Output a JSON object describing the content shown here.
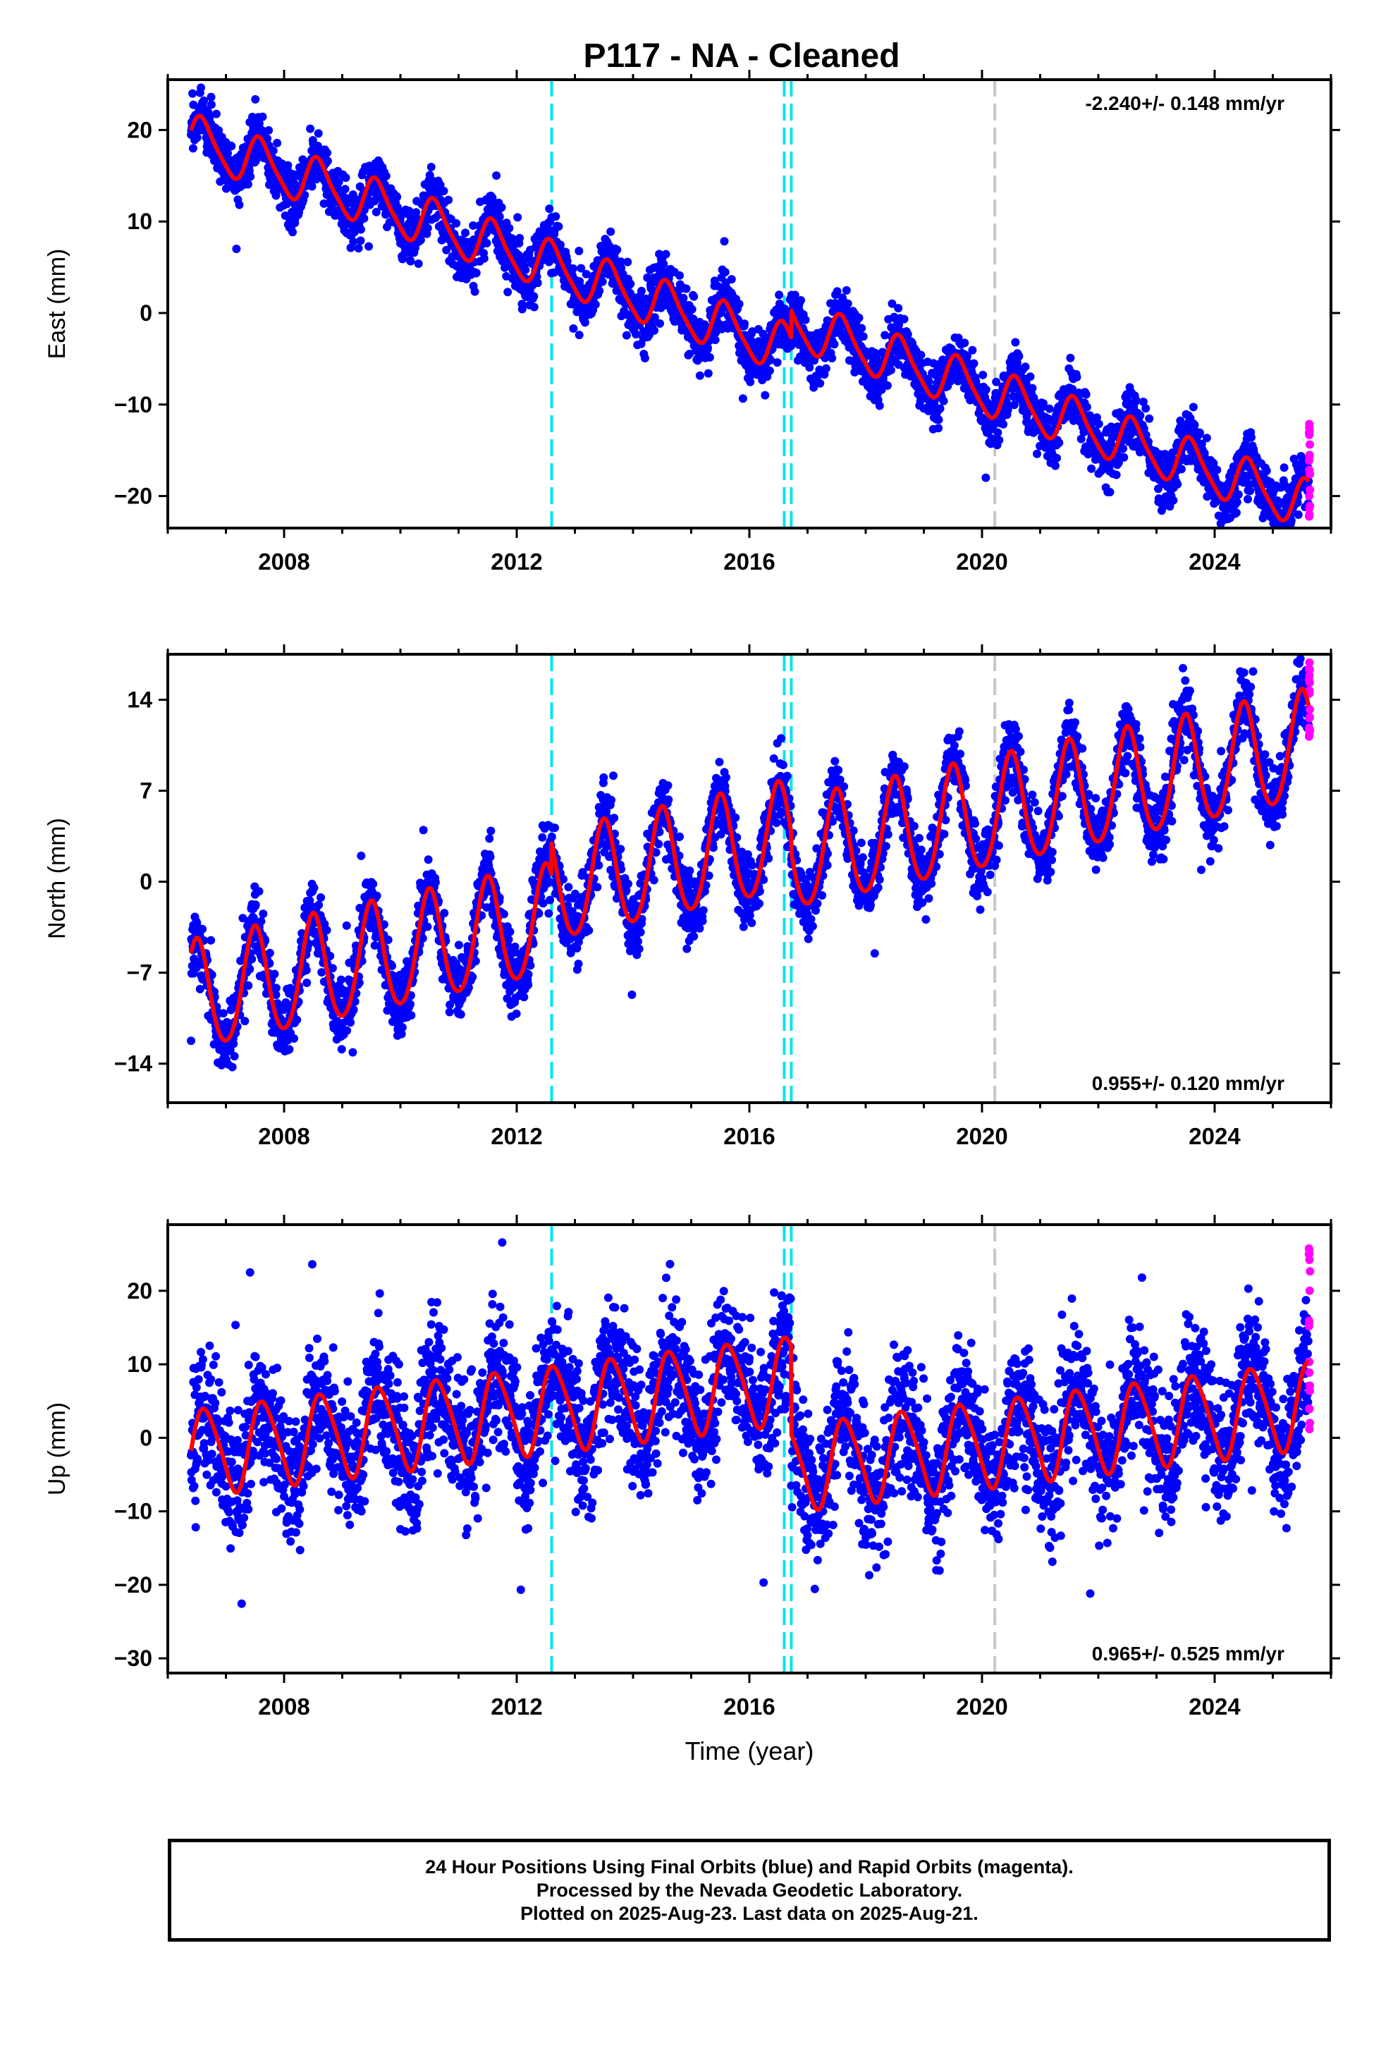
{
  "title": "P117  - NA - Cleaned",
  "colors": {
    "final_orbits": "#0000ff",
    "rapid_orbits": "#ff00ff",
    "model_fit": "#ff0000",
    "offset_equipment": "#00e5ee",
    "offset_other": "#c8c8c8",
    "axis": "#000000"
  },
  "footer": {
    "line1": "24 Hour Positions Using Final Orbits (blue) and Rapid Orbits (magenta).",
    "line2": "Processed by the Nevada Geodetic Laboratory.",
    "line3": "Plotted on 2025-Aug-23. Last data on 2025-Aug-21."
  },
  "chart_data": [
    {
      "type": "scatter",
      "component": "East",
      "ylabel": "East (mm)",
      "xlabel": "",
      "xlim": [
        2006.0,
        2026.0
      ],
      "ylim": [
        -23.5,
        25.5
      ],
      "x_ticks": [
        2008,
        2012,
        2016,
        2020,
        2024
      ],
      "y_ticks": [
        -20,
        -10,
        0,
        10,
        20
      ],
      "rate_label": "-2.240+/- 0.148 mm/yr",
      "rate_label_position": "top-right",
      "offsets": [
        2012.6,
        2016.6,
        2016.72
      ],
      "other_offsets": [
        2020.22
      ],
      "model": {
        "start_year": 2006.4,
        "end_year": 2025.62,
        "value_at_start": 19.0,
        "rate": -2.24,
        "annual_amplitude": 2.6,
        "annual_peak_phase": 0.6,
        "semiannual_amplitude": 0.5,
        "steps": [
          {
            "year": 2016.72,
            "size": 3.0
          }
        ]
      },
      "scatter_sd": 1.5,
      "rapid": {
        "start_year": 2025.62,
        "end_year": 2025.64,
        "y_min": -22.5,
        "y_max": -12.0
      }
    },
    {
      "type": "scatter",
      "component": "North",
      "ylabel": "North (mm)",
      "xlabel": "",
      "xlim": [
        2006.0,
        2026.0
      ],
      "ylim": [
        -17,
        17.5
      ],
      "x_ticks": [
        2008,
        2012,
        2016,
        2020,
        2024
      ],
      "y_ticks": [
        -14,
        -7,
        0,
        7,
        14
      ],
      "rate_label": "0.955+/- 0.120 mm/yr",
      "rate_label_position": "bottom-right",
      "offsets": [
        2012.6,
        2016.6,
        2016.72
      ],
      "other_offsets": [
        2020.22
      ],
      "model": {
        "start_year": 2006.4,
        "end_year": 2025.62,
        "value_at_start": -9.0,
        "rate": 0.955,
        "annual_amplitude": 4.2,
        "annual_peak_phase": 0.5,
        "semiannual_amplitude": 0.4,
        "steps": [
          {
            "year": 2012.6,
            "size": 2.5
          },
          {
            "year": 2016.72,
            "size": -1.5
          }
        ]
      },
      "scatter_sd": 1.3,
      "rapid": {
        "start_year": 2025.62,
        "end_year": 2025.64,
        "y_min": 10.5,
        "y_max": 17.5
      }
    },
    {
      "type": "scatter",
      "component": "Up",
      "ylabel": "Up (mm)",
      "xlabel": "Time (year)",
      "xlim": [
        2006.0,
        2026.0
      ],
      "ylim": [
        -32,
        29
      ],
      "x_ticks": [
        2008,
        2012,
        2016,
        2020,
        2024
      ],
      "y_ticks": [
        -30,
        -20,
        -10,
        0,
        10,
        20
      ],
      "rate_label": "0.965+/- 0.525 mm/yr",
      "rate_label_position": "bottom-right",
      "offsets": [
        2012.6,
        2016.6,
        2016.72
      ],
      "other_offsets": [
        2020.22
      ],
      "model": {
        "start_year": 2006.4,
        "end_year": 2025.62,
        "value_at_start": -2.0,
        "rate": 0.965,
        "annual_amplitude": 5.8,
        "annual_peak_phase": 0.65,
        "semiannual_amplitude": 0.8,
        "steps": [
          {
            "year": 2016.72,
            "size": -12.0
          }
        ]
      },
      "scatter_sd": 4.5,
      "rapid": {
        "start_year": 2025.62,
        "end_year": 2025.64,
        "y_min": 0.0,
        "y_max": 26.5
      }
    }
  ]
}
